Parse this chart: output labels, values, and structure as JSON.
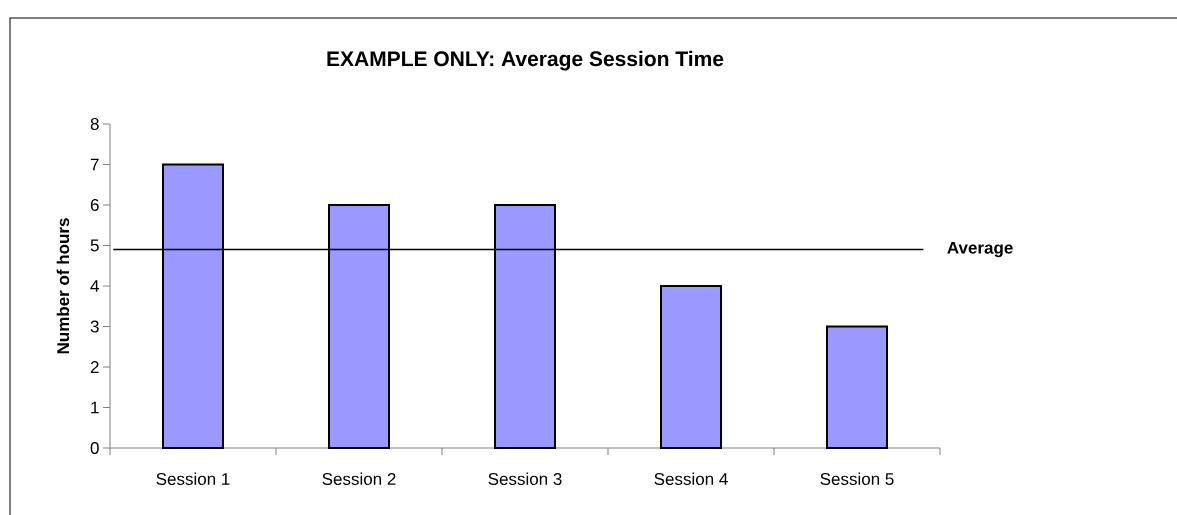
{
  "chart_data": {
    "type": "bar",
    "title": "EXAMPLE ONLY: Average Session Time",
    "ylabel": "Number of hours",
    "categories": [
      "Session 1",
      "Session 2",
      "Session 3",
      "Session 4",
      "Session 5"
    ],
    "values": [
      7,
      6,
      6,
      4,
      3
    ],
    "color": "#9999ff",
    "ylim": [
      0,
      8
    ],
    "yticks": [
      0,
      1,
      2,
      3,
      4,
      5,
      6,
      7,
      8
    ],
    "grid": false,
    "ref_lines": [
      {
        "axis": "y",
        "value": 4.9,
        "label": "Average",
        "color": "#000000"
      }
    ]
  }
}
